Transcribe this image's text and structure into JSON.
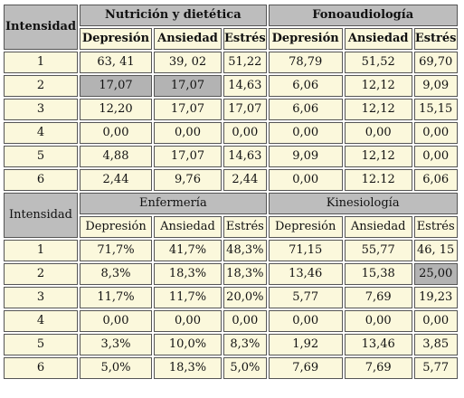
{
  "sections": [
    {
      "style": "bold",
      "int_header": "Intensidad",
      "groups": [
        "Nutrición y dietética",
        "Fonoaudiología"
      ],
      "subheaders": [
        "Depresión",
        "Ansiedad",
        "Estrés",
        "Depresión",
        "Ansiedad",
        "Estrés"
      ],
      "rows": [
        {
          "int": "1",
          "values": [
            "63, 41",
            "39, 02",
            "51,22",
            "78,79",
            "51,52",
            "69,70"
          ]
        },
        {
          "int": "2",
          "values": [
            "17,07",
            "17,07",
            "14,63",
            "6,06",
            "12,12",
            "9,09"
          ]
        },
        {
          "int": "3",
          "values": [
            "12,20",
            "17,07",
            "17,07",
            "6,06",
            "12,12",
            "15,15"
          ]
        },
        {
          "int": "4",
          "values": [
            "0,00",
            "0,00",
            "0,00",
            "0,00",
            "0,00",
            "0,00"
          ]
        },
        {
          "int": "5",
          "values": [
            "4,88",
            "17,07",
            "14,63",
            "9,09",
            "12,12",
            "0,00"
          ]
        },
        {
          "int": "6",
          "values": [
            "2,44",
            "9,76",
            "2,44",
            "0,00",
            "12.12",
            "6,06"
          ]
        }
      ],
      "highlight": [
        [
          1,
          0
        ],
        [
          1,
          1
        ]
      ]
    },
    {
      "style": "normal",
      "int_header": "Intensidad",
      "groups": [
        "Enfermería",
        "Kinesiología"
      ],
      "subheaders": [
        "Depresión",
        "Ansiedad",
        "Estrés",
        "Depresión",
        "Ansiedad",
        "Estrés"
      ],
      "rows": [
        {
          "int": "1",
          "values": [
            "71,7%",
            "41,7%",
            "48,3%",
            "71,15",
            "55,77",
            "46, 15"
          ]
        },
        {
          "int": "2",
          "values": [
            "8,3%",
            "18,3%",
            "18,3%",
            "13,46",
            "15,38",
            "25,00"
          ]
        },
        {
          "int": "3",
          "values": [
            "11,7%",
            "11,7%",
            "20,0%",
            "5,77",
            "7,69",
            "19,23"
          ]
        },
        {
          "int": "4",
          "values": [
            "0,00",
            "0,00",
            "0,00",
            "0,00",
            "0,00",
            "0,00"
          ]
        },
        {
          "int": "5",
          "values": [
            "3,3%",
            "10,0%",
            "8,3%",
            "1,92",
            "13,46",
            "3,85"
          ]
        },
        {
          "int": "6",
          "values": [
            "5,0%",
            "18,3%",
            "5,0%",
            "7,69",
            "7,69",
            "5,77"
          ]
        }
      ],
      "highlight": [
        [
          1,
          5
        ]
      ]
    }
  ]
}
